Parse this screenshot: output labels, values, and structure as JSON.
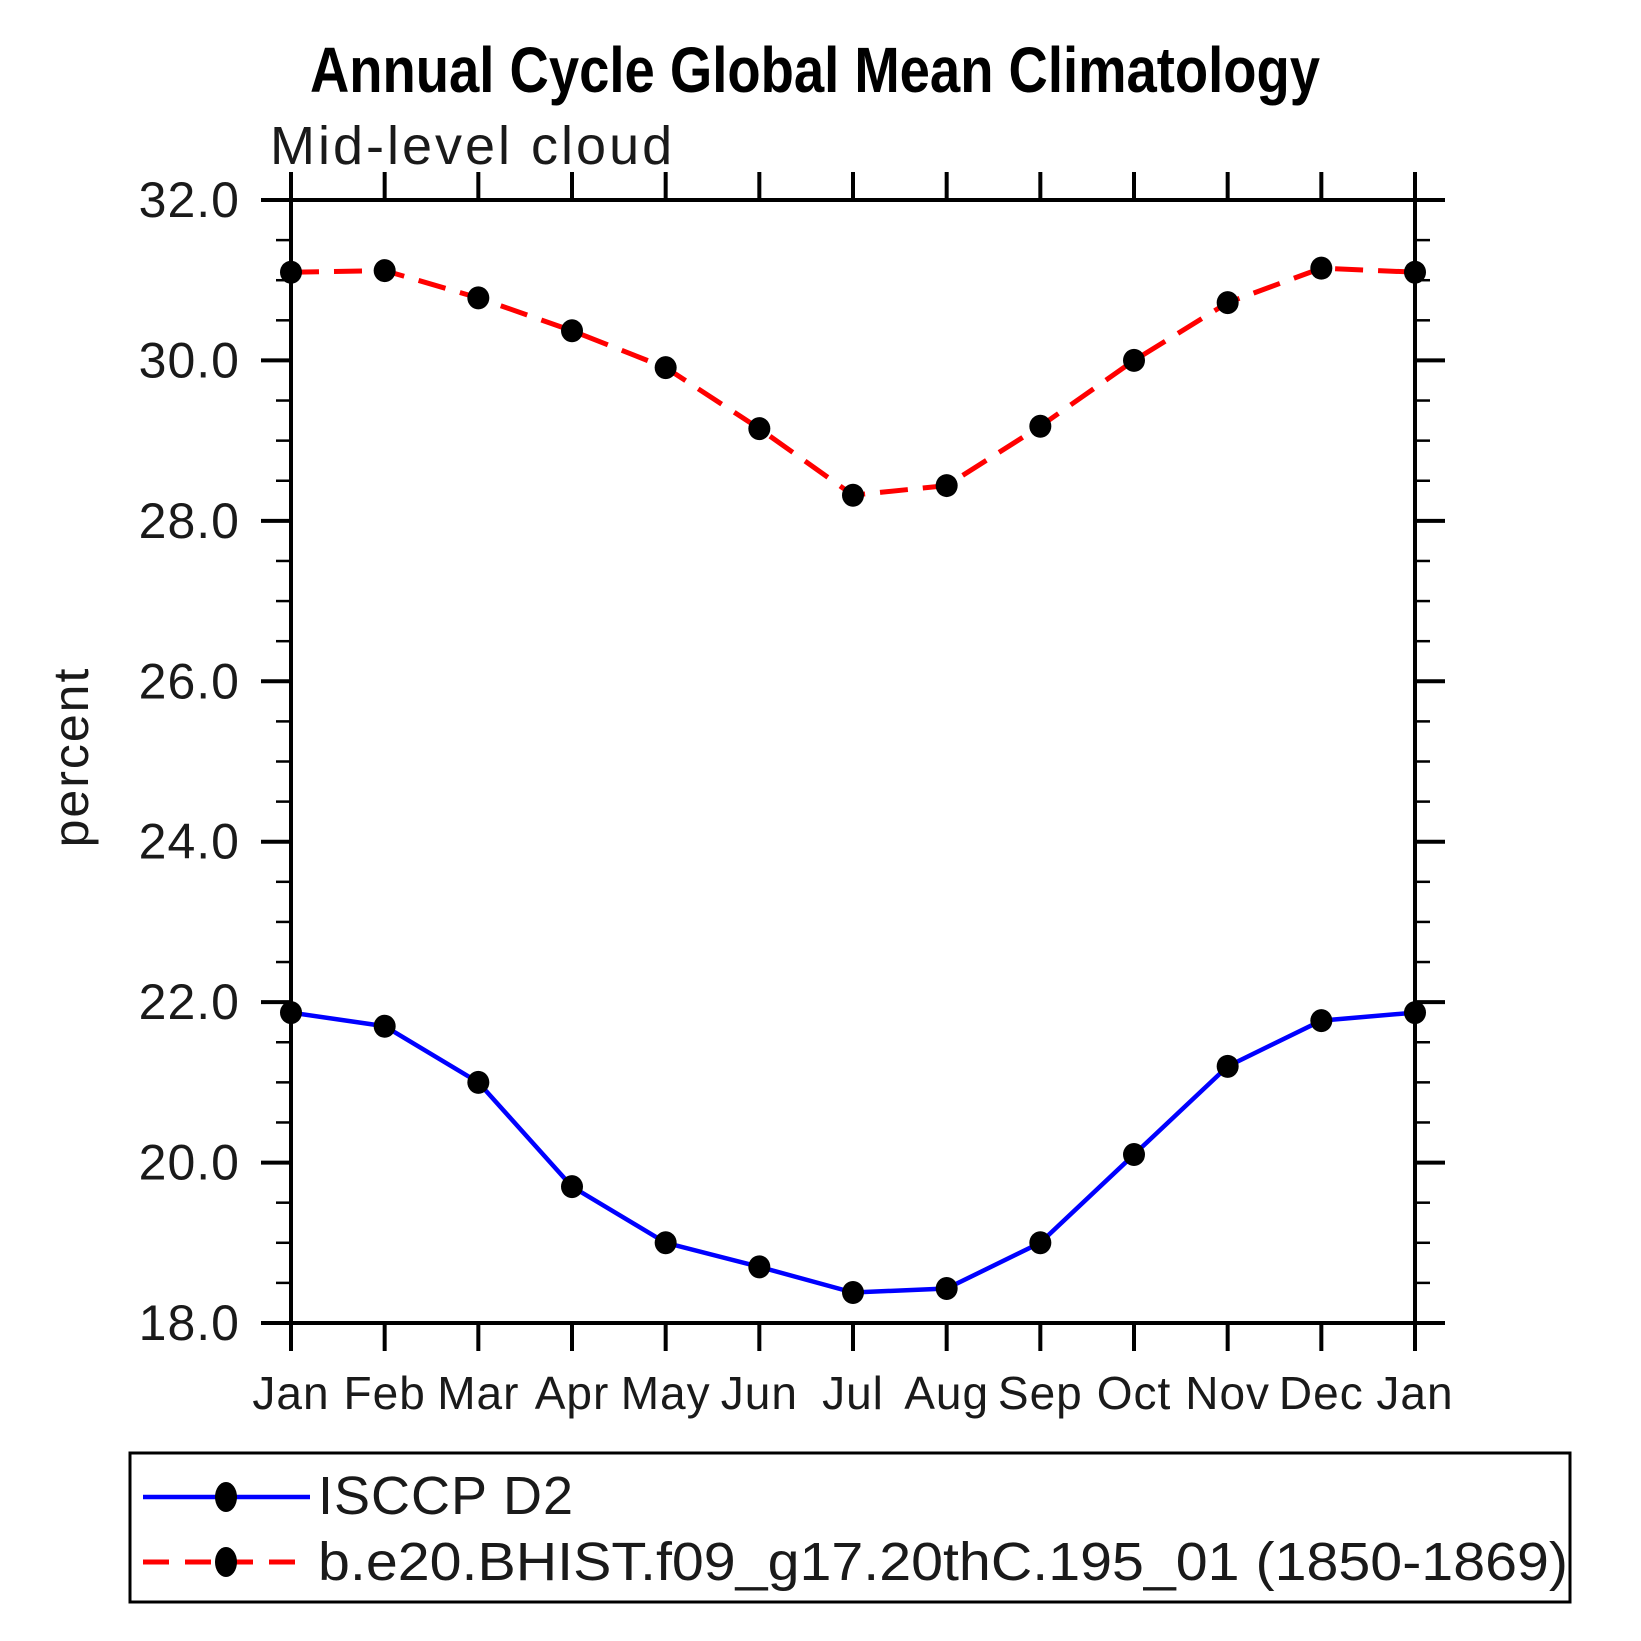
{
  "chart_data": {
    "type": "line",
    "title": "Annual Cycle Global Mean Climatology",
    "subtitle": "Mid-level cloud",
    "ylabel": "percent",
    "xlabel": "",
    "categories": [
      "Jan",
      "Feb",
      "Mar",
      "Apr",
      "May",
      "Jun",
      "Jul",
      "Aug",
      "Sep",
      "Oct",
      "Nov",
      "Dec",
      "Jan"
    ],
    "series": [
      {
        "name": "ISCCP D2",
        "color": "#0000ff",
        "line_style": "solid",
        "marker": "filled-circle",
        "marker_color": "#000000",
        "values": [
          21.87,
          21.7,
          21.0,
          19.7,
          19.0,
          18.7,
          18.38,
          18.43,
          19.0,
          20.1,
          21.2,
          21.77,
          21.87
        ]
      },
      {
        "name": "b.e20.BHIST.f09_g17.20thC.195_01 (1850-1869)",
        "color": "#ff0000",
        "line_style": "dashed",
        "marker": "filled-circle",
        "marker_color": "#000000",
        "values": [
          31.1,
          31.12,
          30.78,
          30.37,
          29.91,
          29.15,
          28.32,
          28.44,
          29.18,
          30.0,
          30.72,
          31.15,
          31.1
        ]
      }
    ],
    "ylim": [
      18.0,
      32.0
    ],
    "ytick_step": 2.0,
    "yminor_step": 0.5,
    "ytick_labels": [
      "18.0",
      "20.0",
      "22.0",
      "24.0",
      "26.0",
      "28.0",
      "30.0",
      "32.0"
    ],
    "grid": false,
    "legend_position": "bottom-box",
    "frame_color": "#000000"
  }
}
